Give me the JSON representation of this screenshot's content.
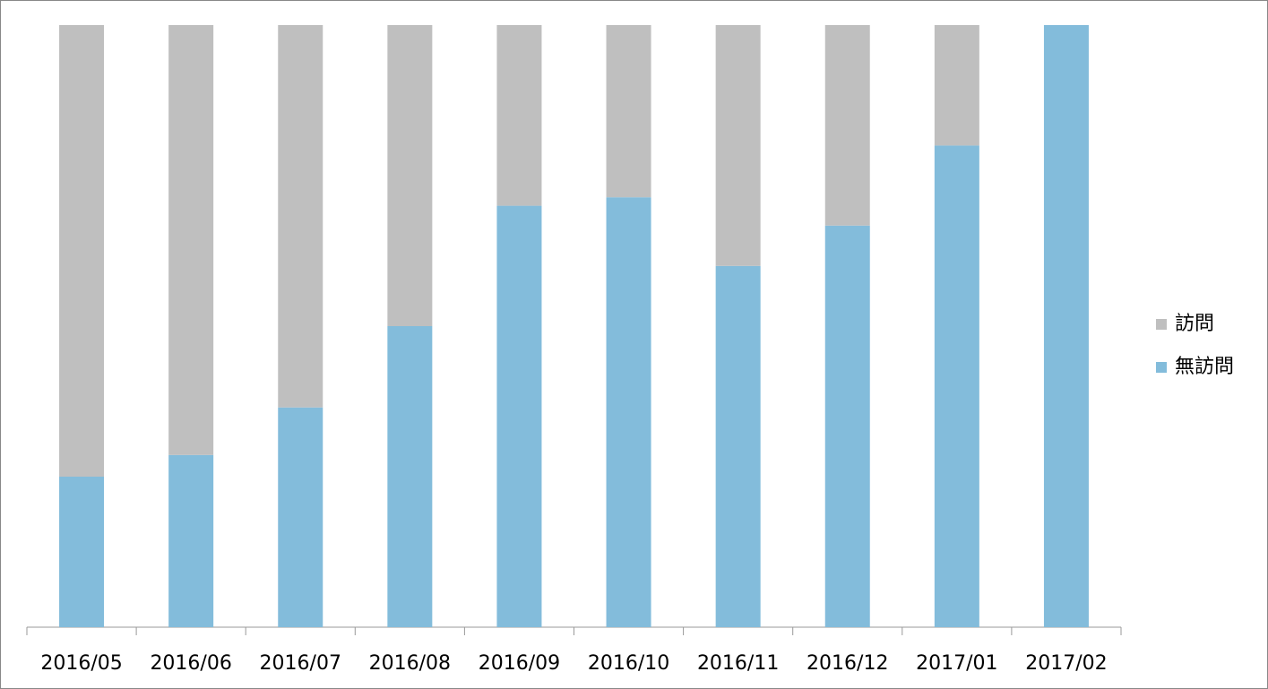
{
  "chart_data": {
    "type": "stacked_bar_percent",
    "categories": [
      "2016/05",
      "2016/06",
      "2016/07",
      "2016/08",
      "2016/09",
      "2016/10",
      "2016/11",
      "2016/12",
      "2017/01",
      "2017/02"
    ],
    "series": [
      {
        "name": "訪問",
        "color": "#bfbfbf",
        "values": [
          75,
          71.4,
          63.5,
          50,
          30,
          28.6,
          40,
          33.3,
          20,
          0
        ]
      },
      {
        "name": "無訪問",
        "color": "#83bcdb",
        "values": [
          25,
          28.6,
          36.5,
          50,
          70,
          71.4,
          60,
          66.7,
          80,
          100
        ]
      }
    ],
    "legend": "right"
  }
}
